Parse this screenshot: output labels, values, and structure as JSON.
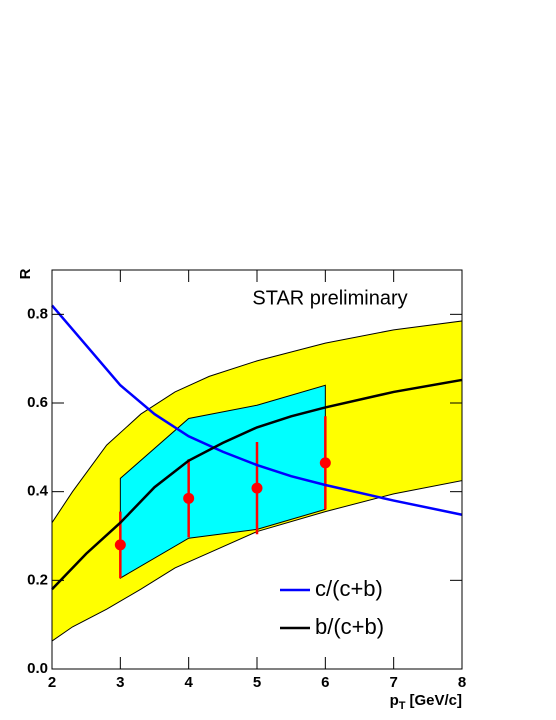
{
  "chart_data": {
    "type": "line",
    "x_label": {
      "main": "p",
      "sub": "T",
      "unit": "[GeV/c]"
    },
    "y_label": "R",
    "annotation": "STAR preliminary",
    "xlim": [
      2,
      8
    ],
    "ylim": [
      0,
      0.9
    ],
    "xticks": [
      2,
      3,
      4,
      5,
      6,
      7,
      8
    ],
    "yticks": [
      {
        "value": 0,
        "label": "0.0"
      },
      0.2,
      0.4,
      0.6,
      0.8
    ],
    "bands": [
      {
        "color": "#ffff00",
        "x": [
          2,
          2.3,
          2.8,
          3.3,
          3.8,
          4.3,
          5,
          6,
          7,
          8
        ],
        "lower": [
          0.063,
          0.095,
          0.135,
          0.18,
          0.228,
          0.262,
          0.31,
          0.355,
          0.395,
          0.425
        ],
        "upper": [
          0.33,
          0.4,
          0.505,
          0.575,
          0.625,
          0.66,
          0.695,
          0.735,
          0.765,
          0.785
        ]
      },
      {
        "color": "#00ffff",
        "x": [
          3,
          4,
          5,
          6
        ],
        "lower": [
          0.205,
          0.295,
          0.315,
          0.36
        ],
        "upper": [
          0.43,
          0.565,
          0.595,
          0.64
        ]
      }
    ],
    "series": [
      {
        "name": "c/(c+b)",
        "color": "#0000ff",
        "x": [
          2,
          2.5,
          3,
          3.5,
          4,
          4.5,
          5,
          5.5,
          6,
          7,
          8
        ],
        "values": [
          0.82,
          0.73,
          0.64,
          0.575,
          0.525,
          0.49,
          0.46,
          0.435,
          0.415,
          0.38,
          0.348
        ]
      },
      {
        "name": "b/(c+b)",
        "color": "#000000",
        "x": [
          2,
          2.5,
          3,
          3.5,
          4,
          4.5,
          5,
          5.5,
          6,
          7,
          8
        ],
        "values": [
          0.18,
          0.26,
          0.33,
          0.41,
          0.47,
          0.51,
          0.545,
          0.57,
          0.59,
          0.625,
          0.652
        ]
      }
    ],
    "points": {
      "color": "#ff0000",
      "x": [
        3,
        4,
        5,
        6
      ],
      "values": [
        0.28,
        0.385,
        0.408,
        0.465
      ],
      "errors": [
        0.075,
        0.088,
        0.104,
        0.105
      ]
    }
  }
}
